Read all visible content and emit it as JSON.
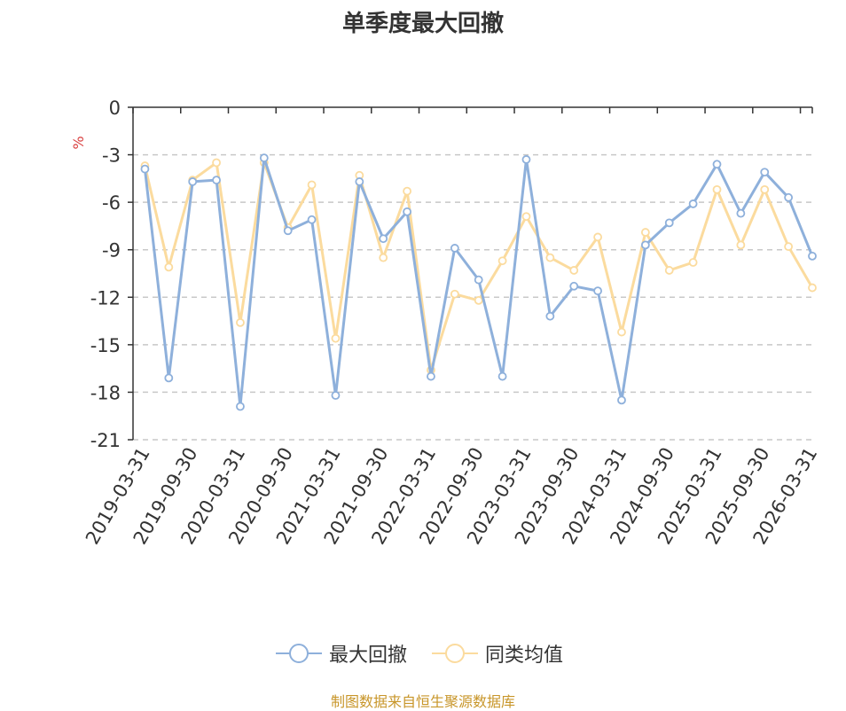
{
  "chart_data": {
    "type": "line",
    "title": "单季度最大回撤",
    "ylabel": "%",
    "ylim": [
      -21,
      0
    ],
    "yticks": [
      "0",
      "-3",
      "-6",
      "-9",
      "-12",
      "-15",
      "-18",
      "-21"
    ],
    "grid": true,
    "xtick_labels": [
      "2019-03-31",
      "2019-09-30",
      "2020-03-31",
      "2020-09-30",
      "2021-03-31",
      "2021-09-30",
      "2022-03-31",
      "2022-09-30",
      "2023-03-31",
      "2023-09-30",
      "2024-03-31",
      "2024-09-30",
      "2025-03-31",
      "2025-09-30",
      "2026-03-31"
    ],
    "x_count": 29,
    "series": [
      {
        "name": "最大回撤",
        "color": "#8eb0db",
        "values": [
          -3.9,
          -17.1,
          -4.7,
          -4.6,
          -18.9,
          -3.2,
          -7.8,
          -7.1,
          -18.2,
          -4.7,
          -8.3,
          -6.6,
          -17.0,
          -8.9,
          -10.9,
          -17.0,
          -3.3,
          -13.2,
          -11.3,
          -11.6,
          -18.5,
          -8.7,
          -7.3,
          -6.1,
          -3.6,
          -6.7,
          -4.1,
          -5.7,
          -9.4
        ]
      },
      {
        "name": "同类均值",
        "color": "#fbdb9e",
        "values": [
          -3.7,
          -10.1,
          -4.6,
          -3.5,
          -13.6,
          -3.5,
          -7.6,
          -4.9,
          -14.6,
          -4.3,
          -9.5,
          -5.3,
          -16.6,
          -11.8,
          -12.2,
          -9.7,
          -6.9,
          -9.5,
          -10.3,
          -8.2,
          -14.2,
          -7.9,
          -10.3,
          -9.8,
          -5.2,
          -8.7,
          -5.2,
          -8.8,
          -11.4
        ]
      }
    ]
  },
  "source_text": "制图数据来自恒生聚源数据库"
}
